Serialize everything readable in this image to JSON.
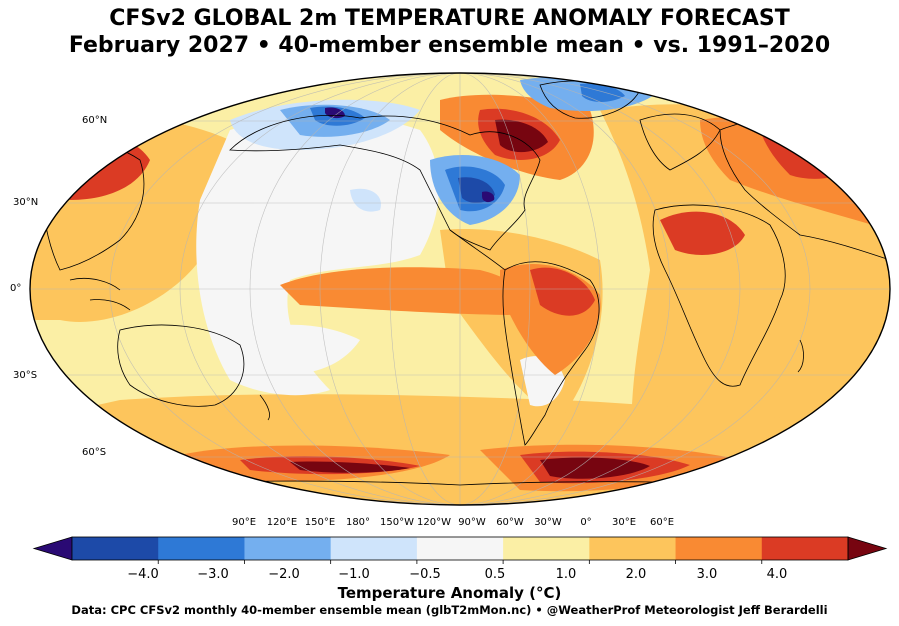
{
  "header": {
    "title": "CFSv2 GLOBAL 2m TEMPERATURE ANOMALY FORECAST",
    "subtitle": "February 2027 • 40-member ensemble mean • vs. 1991–2020"
  },
  "map": {
    "projection": "robinson",
    "latitude_labels": [
      "60°N",
      "30°N",
      "0°",
      "30°S",
      "60°S"
    ],
    "longitude_labels": [
      "90°E",
      "120°E",
      "150°E",
      "180°",
      "150°W",
      "120°W",
      "90°W",
      "60°W",
      "30°W",
      "0°",
      "30°E",
      "60°E"
    ],
    "gridlines": true
  },
  "colorbar": {
    "title": "Temperature Anomaly (°C)",
    "extend": "both",
    "ticks": [
      "−4.0",
      "−3.0",
      "−2.0",
      "−1.0",
      "−0.5",
      "0.5",
      "1.0",
      "2.0",
      "3.0",
      "4.0"
    ],
    "colors": [
      "#2a0a74",
      "#1d4aa8",
      "#2e79d6",
      "#74afef",
      "#cfe4fb",
      "#f6f6f6",
      "#fbefa5",
      "#fdc55c",
      "#f98a33",
      "#db3b24",
      "#770510"
    ]
  },
  "footer": {
    "credit": "Data: CPC CFSv2 monthly 40-member ensemble mean (glbT2mMon.nc) • @WeatherProf Meteorologist Jeff Berardelli"
  }
}
